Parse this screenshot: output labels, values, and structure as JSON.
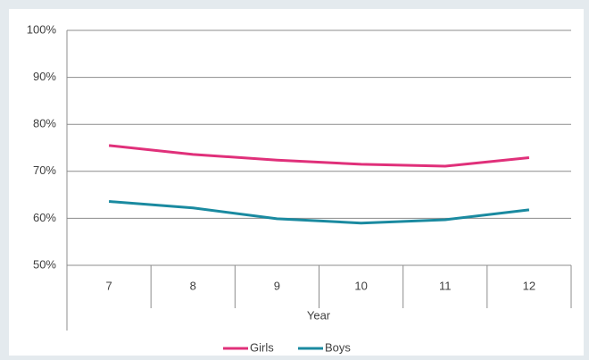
{
  "chart_data": {
    "type": "line",
    "categories": [
      "7",
      "8",
      "9",
      "10",
      "11",
      "12"
    ],
    "xlabel": "Year",
    "series": [
      {
        "name": "Girls",
        "color": "#e0307a",
        "values": [
          75.5,
          73.6,
          72.4,
          71.5,
          71.1,
          72.9
        ]
      },
      {
        "name": "Boys",
        "color": "#1a8aa0",
        "values": [
          63.6,
          62.2,
          59.9,
          59.0,
          59.7,
          61.8
        ]
      }
    ],
    "ylim": [
      50,
      100
    ],
    "yticks": [
      {
        "value": 50,
        "label": "50%"
      },
      {
        "value": 60,
        "label": "60%"
      },
      {
        "value": 70,
        "label": "70%"
      },
      {
        "value": 80,
        "label": "80%"
      },
      {
        "value": 90,
        "label": "90%"
      },
      {
        "value": 100,
        "label": "100%"
      }
    ],
    "grid": true,
    "legend": "bottom"
  }
}
